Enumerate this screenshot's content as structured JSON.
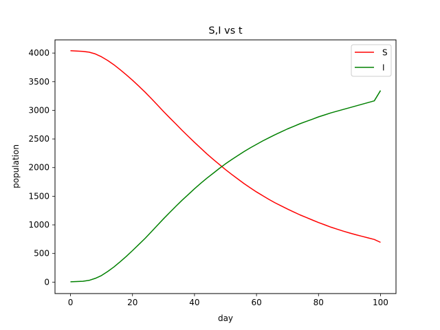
{
  "chart_data": {
    "type": "line",
    "title": "S,I vs t",
    "xlabel": "day",
    "ylabel": "population",
    "xlim": [
      -5,
      105
    ],
    "ylim": [
      -200,
      4230
    ],
    "xticks": [
      0,
      20,
      40,
      60,
      80,
      100
    ],
    "yticks": [
      0,
      500,
      1000,
      1500,
      2000,
      2500,
      3000,
      3500,
      4000
    ],
    "grid": false,
    "legend_position": "top-right",
    "x": [
      0,
      2,
      4,
      6,
      8,
      10,
      12,
      14,
      16,
      18,
      20,
      22,
      24,
      26,
      28,
      30,
      32,
      34,
      36,
      38,
      40,
      42,
      44,
      46,
      48,
      50,
      52,
      54,
      56,
      58,
      60,
      62,
      64,
      66,
      68,
      70,
      72,
      74,
      76,
      78,
      80,
      82,
      84,
      86,
      88,
      90,
      92,
      94,
      96,
      98,
      100
    ],
    "series": [
      {
        "name": "S",
        "color": "#ff0000",
        "values": [
          4040,
          4035,
          4030,
          4015,
          3985,
          3935,
          3870,
          3795,
          3710,
          3620,
          3525,
          3425,
          3320,
          3210,
          3095,
          2980,
          2870,
          2760,
          2650,
          2545,
          2440,
          2340,
          2240,
          2145,
          2055,
          1965,
          1880,
          1800,
          1720,
          1645,
          1575,
          1510,
          1445,
          1385,
          1330,
          1275,
          1225,
          1175,
          1130,
          1085,
          1040,
          1000,
          960,
          925,
          890,
          858,
          828,
          800,
          772,
          745,
          695
        ]
      },
      {
        "name": "I",
        "color": "#008000",
        "values": [
          5,
          10,
          15,
          30,
          65,
          115,
          185,
          265,
          355,
          450,
          550,
          655,
          760,
          875,
          990,
          1105,
          1215,
          1325,
          1430,
          1530,
          1630,
          1725,
          1815,
          1900,
          1985,
          2065,
          2140,
          2210,
          2280,
          2345,
          2405,
          2465,
          2520,
          2575,
          2625,
          2675,
          2720,
          2765,
          2805,
          2845,
          2885,
          2920,
          2955,
          2985,
          3015,
          3045,
          3075,
          3105,
          3135,
          3165,
          3345
        ]
      }
    ]
  }
}
